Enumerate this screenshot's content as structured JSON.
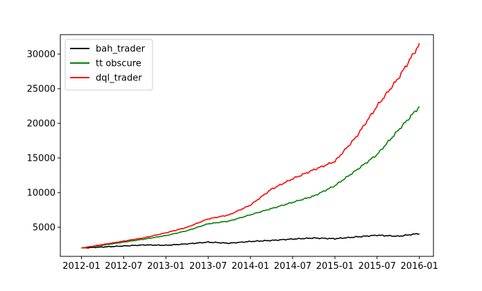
{
  "chart_data": {
    "type": "line",
    "x_dates": [
      "2012-01",
      "2012-04",
      "2012-07",
      "2012-10",
      "2013-01",
      "2013-04",
      "2013-07",
      "2013-10",
      "2014-01",
      "2014-04",
      "2014-07",
      "2014-10",
      "2015-01",
      "2015-04",
      "2015-07",
      "2015-10",
      "2016-01"
    ],
    "x_ticks": [
      "2012-01",
      "2012-07",
      "2013-01",
      "2013-07",
      "2014-01",
      "2014-07",
      "2015-01",
      "2015-07",
      "2016-01"
    ],
    "y_ticks": [
      5000,
      10000,
      15000,
      20000,
      25000,
      30000
    ],
    "ylim": [
      800,
      32800
    ],
    "xlim": [
      "2011-10",
      "2016-03"
    ],
    "grid": false,
    "legend_position": "top-left",
    "series": [
      {
        "name": "bah_trader",
        "color": "#000000",
        "values": [
          2000,
          2150,
          2300,
          2450,
          2400,
          2600,
          2850,
          2700,
          2950,
          3100,
          3300,
          3450,
          3350,
          3600,
          3850,
          3700,
          4100
        ]
      },
      {
        "name": "tt obscure",
        "color": "#008000",
        "values": [
          2000,
          2400,
          2850,
          3300,
          3800,
          4500,
          5500,
          5900,
          6800,
          7700,
          8600,
          9500,
          11000,
          13200,
          15500,
          19000,
          22400
        ]
      },
      {
        "name": "dql_trader",
        "color": "#ff0000",
        "values": [
          2000,
          2500,
          3000,
          3500,
          4200,
          5000,
          6200,
          6800,
          8200,
          10500,
          12000,
          13300,
          14500,
          18000,
          22500,
          26500,
          31400
        ]
      }
    ]
  }
}
